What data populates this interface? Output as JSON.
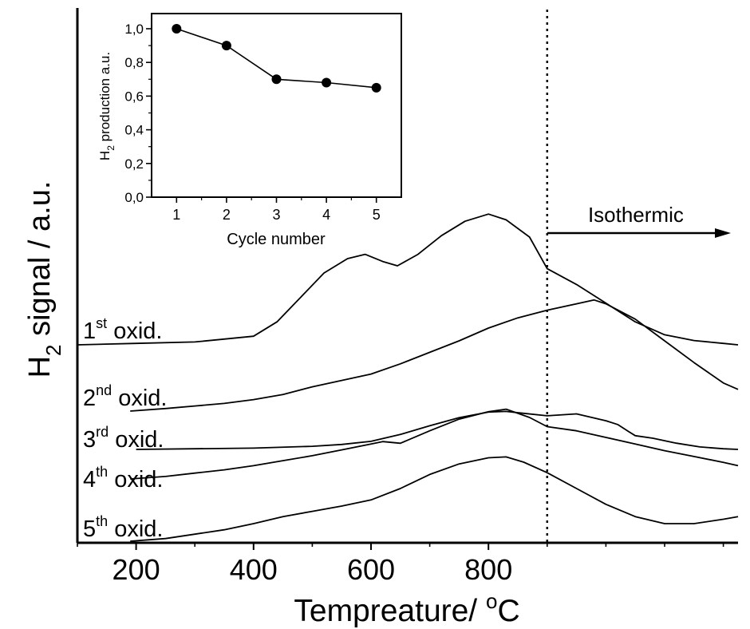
{
  "chart_data": [
    {
      "type": "line",
      "panel": "main",
      "xlabel": "Tempreature/ °C",
      "xlabel_parts": {
        "text": "Tempreature/ ",
        "sup": "o",
        "unit": "C"
      },
      "ylabel_parts": {
        "base": "H",
        "sub": "2",
        "rest": " signal / a.u."
      },
      "x_ticks": [
        200,
        400,
        600,
        800
      ],
      "xlim": [
        100,
        1225
      ],
      "y_ticks_visible": false,
      "grid": false,
      "vertical_marker": {
        "x": 900,
        "style": "dotted"
      },
      "annotation": {
        "text": "Isothermic",
        "arrow": "right",
        "from_x": 900
      },
      "series": [
        {
          "name": "1st oxid.",
          "label_parts": {
            "num": "1",
            "sup": "st",
            "text": " oxid."
          },
          "x": [
            100,
            200,
            300,
            350,
            400,
            440,
            480,
            520,
            560,
            590,
            620,
            645,
            680,
            720,
            760,
            800,
            830,
            870,
            900,
            950,
            1000,
            1050,
            1100,
            1150,
            1200,
            1225
          ],
          "y": [
            0.0,
            0.01,
            0.02,
            0.04,
            0.06,
            0.16,
            0.33,
            0.5,
            0.6,
            0.63,
            0.58,
            0.55,
            0.63,
            0.76,
            0.86,
            0.91,
            0.87,
            0.75,
            0.53,
            0.42,
            0.29,
            0.16,
            0.07,
            0.03,
            0.01,
            0.0
          ]
        },
        {
          "name": "2nd oxid.",
          "label_parts": {
            "num": "2",
            "sup": "nd",
            "text": " oxid."
          },
          "x": [
            190,
            250,
            300,
            350,
            400,
            450,
            500,
            550,
            600,
            650,
            700,
            750,
            800,
            850,
            900,
            950,
            980,
            1000,
            1050,
            1100,
            1150,
            1200,
            1225
          ],
          "y": [
            0.0,
            0.02,
            0.04,
            0.06,
            0.09,
            0.13,
            0.19,
            0.24,
            0.29,
            0.37,
            0.46,
            0.55,
            0.65,
            0.73,
            0.79,
            0.84,
            0.87,
            0.84,
            0.72,
            0.55,
            0.38,
            0.22,
            0.17
          ]
        },
        {
          "name": "3rd oxid.",
          "label_parts": {
            "num": "3",
            "sup": "rd",
            "text": " oxid."
          },
          "x": [
            200,
            300,
            400,
            500,
            550,
            600,
            650,
            700,
            750,
            800,
            830,
            860,
            900,
            950,
            1000,
            1020,
            1040,
            1050,
            1080,
            1120,
            1160,
            1200,
            1225
          ],
          "y": [
            0.0,
            0.01,
            0.02,
            0.05,
            0.08,
            0.13,
            0.24,
            0.38,
            0.51,
            0.6,
            0.61,
            0.58,
            0.54,
            0.57,
            0.46,
            0.4,
            0.28,
            0.22,
            0.18,
            0.1,
            0.04,
            0.01,
            0.0
          ]
        },
        {
          "name": "4th oxid.",
          "label_parts": {
            "num": "4",
            "sup": "th",
            "text": " oxid."
          },
          "x": [
            190,
            250,
            300,
            350,
            400,
            450,
            500,
            550,
            600,
            620,
            650,
            700,
            750,
            800,
            830,
            870,
            900,
            950,
            1000,
            1050,
            1100,
            1150,
            1200,
            1225
          ],
          "y": [
            0.0,
            0.03,
            0.07,
            0.11,
            0.16,
            0.22,
            0.28,
            0.35,
            0.42,
            0.45,
            0.43,
            0.58,
            0.72,
            0.81,
            0.84,
            0.74,
            0.63,
            0.58,
            0.5,
            0.42,
            0.34,
            0.27,
            0.2,
            0.16
          ]
        },
        {
          "name": "5th oxid.",
          "label_parts": {
            "num": "5",
            "sup": "th",
            "text": " oxid."
          },
          "x": [
            190,
            250,
            300,
            350,
            400,
            450,
            500,
            550,
            600,
            650,
            700,
            750,
            800,
            830,
            860,
            900,
            950,
            1000,
            1050,
            1100,
            1150,
            1200,
            1225
          ],
          "y": [
            0.0,
            0.03,
            0.08,
            0.13,
            0.2,
            0.28,
            0.34,
            0.4,
            0.47,
            0.6,
            0.76,
            0.88,
            0.95,
            0.96,
            0.9,
            0.78,
            0.6,
            0.42,
            0.28,
            0.2,
            0.2,
            0.25,
            0.28
          ]
        }
      ]
    },
    {
      "type": "line",
      "panel": "inset",
      "xlabel": "Cycle number",
      "ylabel_parts": {
        "base": "H",
        "sub": "2",
        "rest": " production a.u."
      },
      "x": [
        1,
        2,
        3,
        4,
        5
      ],
      "y": [
        1.0,
        0.9,
        0.7,
        0.68,
        0.65
      ],
      "x_ticks": [
        "1",
        "2",
        "3",
        "4",
        "5"
      ],
      "y_ticks": [
        "0,0",
        "0,2",
        "0,4",
        "0,6",
        "0,8",
        "1,0"
      ],
      "xlim": [
        0.5,
        5.5
      ],
      "ylim": [
        0,
        1.09
      ],
      "markers": "filled-circle",
      "grid": false
    }
  ]
}
